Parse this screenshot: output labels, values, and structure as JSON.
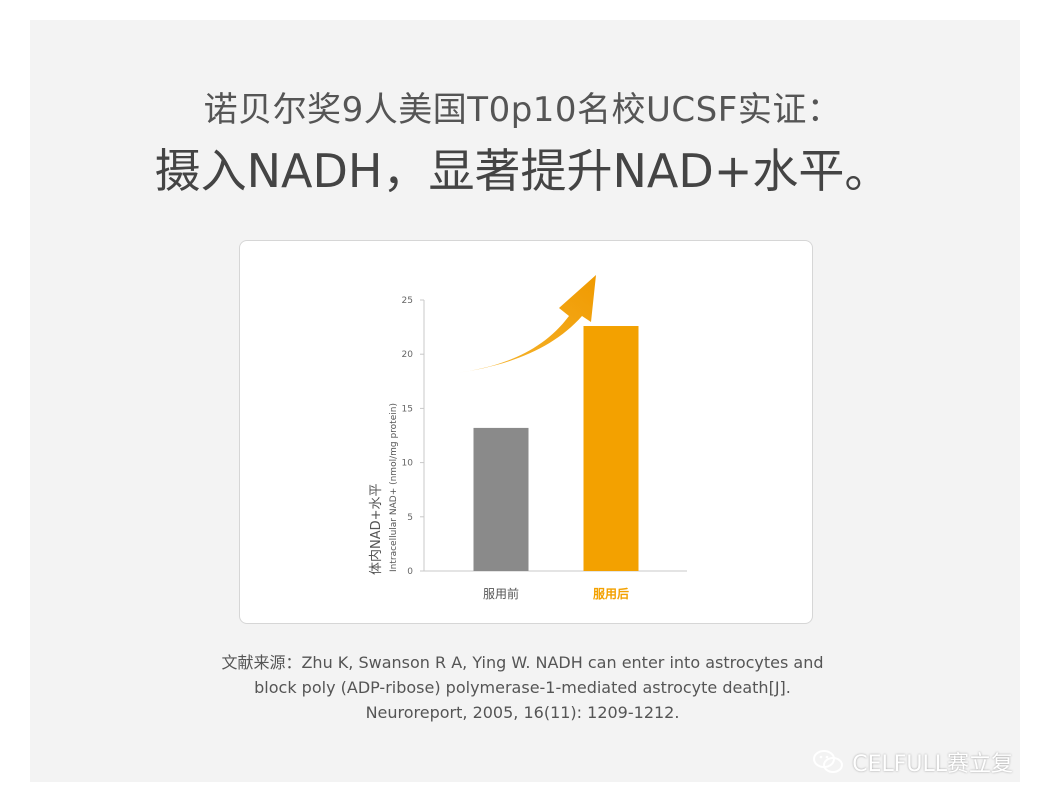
{
  "header": {
    "subtitle": "诺贝尔奖9人美国T0p10名校UCSF实证：",
    "title": "摄入NADH，显著提升NAD+水平。"
  },
  "chart_data": {
    "type": "bar",
    "categories": [
      "服用前",
      "服用后"
    ],
    "values": [
      13.2,
      22.6
    ],
    "ylabel_zh": "体内NAD+水平",
    "ylabel_en": "Intracellular NAD+ (nmol/mg protein)",
    "yticks": [
      0,
      5,
      10,
      15,
      20,
      25
    ],
    "ylim": [
      0,
      25
    ],
    "bar_colors": [
      "#8a8a8a",
      "#f3a100"
    ],
    "highlight_label_color": "#f3a100",
    "grid": false,
    "annotation": "orange upward arrow"
  },
  "citation": {
    "line1": "文献来源：Zhu K, Swanson R A, Ying W. NADH can enter into astrocytes and",
    "line2": "block poly (ADP-ribose) polymerase-1-mediated astrocyte death[J].",
    "line3": "Neuroreport, 2005, 16(11): 1209-1212."
  },
  "watermark": {
    "text": "CELFULL赛立复",
    "icon": "wechat-icon"
  }
}
